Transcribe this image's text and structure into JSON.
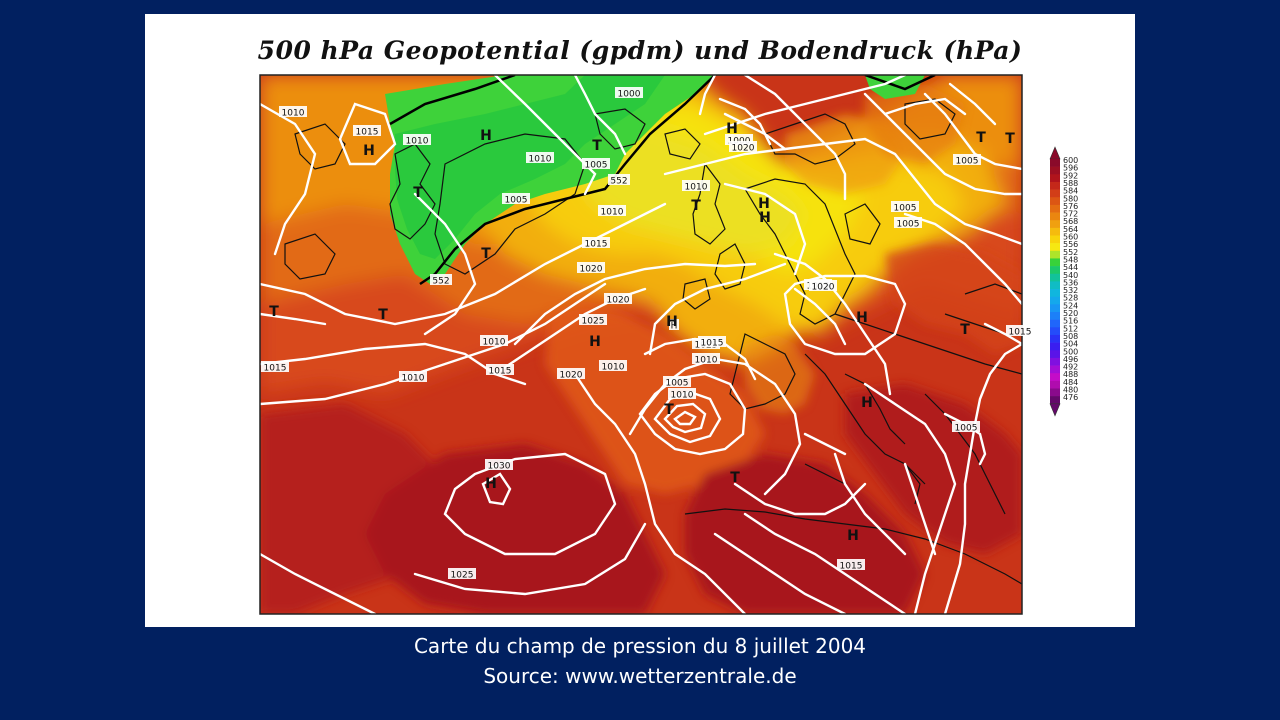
{
  "map": {
    "title": "500 hPa Geopotential (gpdm) und Bodendruck (hPa)",
    "colorbar_values": [
      "600",
      "596",
      "592",
      "588",
      "584",
      "580",
      "576",
      "572",
      "568",
      "564",
      "560",
      "556",
      "552",
      "548",
      "544",
      "540",
      "536",
      "532",
      "528",
      "524",
      "520",
      "516",
      "512",
      "508",
      "504",
      "500",
      "496",
      "492",
      "488",
      "484",
      "480",
      "476"
    ],
    "colorbar_colors": [
      "#8a0a2a",
      "#9c0f22",
      "#b0141c",
      "#c4281a",
      "#d23e18",
      "#dc5614",
      "#e46d12",
      "#ea8610",
      "#f0a010",
      "#f5bb0e",
      "#f8d40c",
      "#f6e812",
      "#aee42a",
      "#38d23a",
      "#1cc86a",
      "#12c29a",
      "#10bcc4",
      "#10b6de",
      "#14a8ec",
      "#1896f4",
      "#1c80f8",
      "#2066fa",
      "#244cfa",
      "#2a32f6",
      "#3a1ef0",
      "#5a14e8",
      "#8010e0",
      "#a40ed6",
      "#c40cc8",
      "#b00cae",
      "#8a0a8c",
      "#64086a"
    ],
    "isobar_labels": [
      "1010",
      "1015",
      "1010",
      "1010",
      "1000",
      "1005",
      "1010",
      "1005",
      "552",
      "1010",
      "1005",
      "1015",
      "1020",
      "1010",
      "1020",
      "H",
      "1005",
      "1010",
      "1010",
      "1025",
      "1010",
      "1015",
      "1010",
      "1005",
      "1000",
      "1015",
      "1020",
      "1015",
      "1015",
      "1030",
      "1025",
      "1005",
      "1020",
      "1015",
      "1025",
      "1015",
      "552",
      "1020",
      "1005"
    ],
    "pressure_centers": [
      "H",
      "T",
      "T",
      "T",
      "H",
      "T",
      "H",
      "H",
      "T",
      "T",
      "T",
      "H",
      "T",
      "H",
      "T",
      "H",
      "H",
      "T",
      "T",
      "H",
      "H",
      "H"
    ]
  },
  "caption": {
    "line1": "Carte du champ de pression du 8 juillet 2004",
    "line2": "Source: www.wetterzentrale.de"
  }
}
